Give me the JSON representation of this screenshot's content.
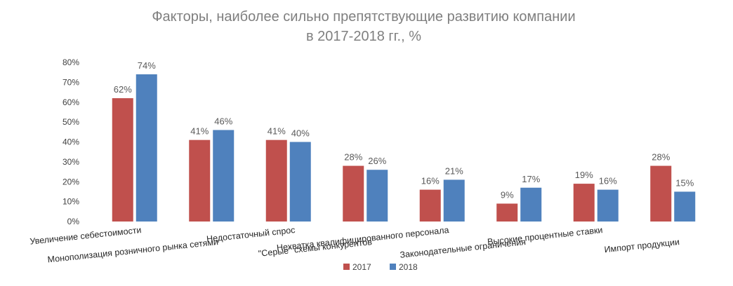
{
  "chart_data": {
    "type": "bar",
    "title": "Факторы, наиболее сильно препятствующие развитию компании",
    "subtitle": "в 2017-2018 гг., %",
    "categories": [
      "Увеличение себестоимости",
      "Монополизация розничного рынка сетями",
      "Недостаточный спрос",
      "\"Серые\" схемы конкурентов",
      "Нехватка квалифицированного персонала",
      "Законодательные ограничения",
      "Высокие процентные ставки",
      "Импорт продукции"
    ],
    "series": [
      {
        "name": "2017",
        "color": "#c0504d",
        "values": [
          62,
          41,
          41,
          28,
          16,
          9,
          19,
          28
        ]
      },
      {
        "name": "2018",
        "color": "#4f81bd",
        "values": [
          74,
          46,
          40,
          26,
          21,
          17,
          16,
          15
        ]
      }
    ],
    "y_ticks": [
      0,
      10,
      20,
      30,
      40,
      50,
      60,
      70,
      80
    ],
    "ylim": [
      0,
      80
    ],
    "value_suffix": "%",
    "grid": false,
    "legend_position": "bottom"
  }
}
